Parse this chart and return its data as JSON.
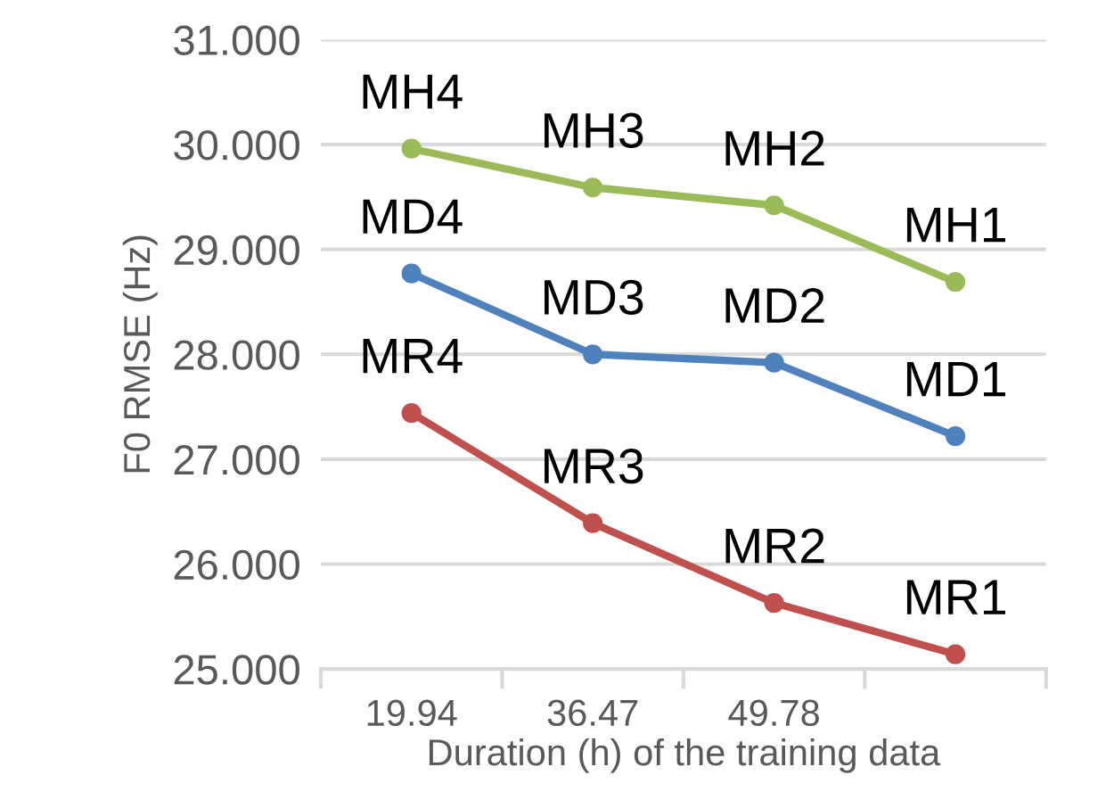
{
  "chart_data": {
    "type": "line",
    "xlabel": "Duration (h) of the training data",
    "ylabel": "F0 RMSE (Hz)",
    "categories": [
      "19.94",
      "36.47",
      "49.78",
      null
    ],
    "series": [
      {
        "color": "#9bbb59",
        "values": [
          29.96,
          29.59,
          29.42,
          28.69
        ],
        "value_labels": [
          "MH4",
          "MH3",
          "MH2",
          "MH1"
        ]
      },
      {
        "color": "#4f81bd",
        "values": [
          28.77,
          28.0,
          27.92,
          27.22
        ],
        "value_labels": [
          "MD4",
          "MD3",
          "MD2",
          "MD1"
        ]
      },
      {
        "color": "#c0504d",
        "values": [
          27.44,
          26.39,
          25.63,
          25.14
        ],
        "value_labels": [
          "MR4",
          "MR3",
          "MR2",
          "MR1"
        ]
      }
    ],
    "ylim": [
      25,
      31
    ],
    "yticks": [
      {
        "value": 25,
        "label": "25.000"
      },
      {
        "value": 26,
        "label": "26.000"
      },
      {
        "value": 27,
        "label": "27.000"
      },
      {
        "value": 28,
        "label": "28.000"
      },
      {
        "value": 29,
        "label": "29.000"
      },
      {
        "value": 30,
        "label": "30.000"
      },
      {
        "value": 31,
        "label": "31.000"
      }
    ],
    "grid": "y",
    "marker": "circle",
    "line_style": "solid"
  }
}
